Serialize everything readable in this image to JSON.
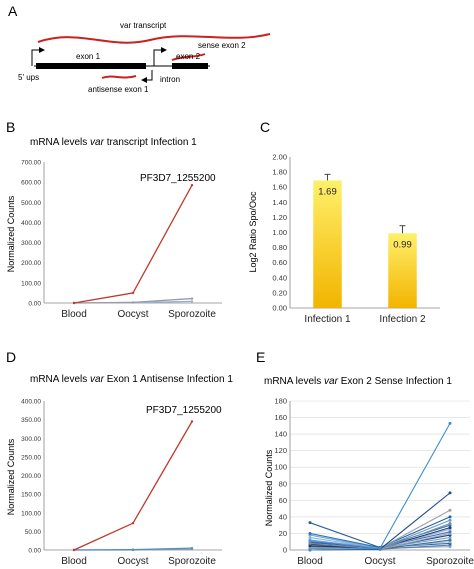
{
  "panel_a": {
    "letter": "A",
    "labels": {
      "var_transcript": "var transcript",
      "sense_exon2": "sense exon 2",
      "exon1": "exon 1",
      "exon2": "exon 2",
      "ups": "5' ups",
      "intron": "intron",
      "antisense_exon1": "antisense exon 1"
    },
    "colors": {
      "transcript": "#c8231e",
      "gene": "#000000"
    }
  },
  "chart_data": [
    {
      "panel": "B",
      "type": "line",
      "title_pre": "mRNA levels ",
      "title_em": "var",
      "title_post": " transcript Infection 1",
      "ylabel": "Normalized Counts",
      "categories": [
        "Blood",
        "Oocyst",
        "Sporozoite"
      ],
      "ylim": [
        0,
        700
      ],
      "yticks": [
        "0.00",
        "100.00",
        "200.00",
        "300.00",
        "400.00",
        "500.00",
        "600.00",
        "700.00"
      ],
      "annotation": "PF3D7_1255200",
      "series": [
        {
          "name": "PF3D7_1255200",
          "color": "#c0392b",
          "values": [
            0,
            50,
            585
          ]
        },
        {
          "color": "#9a9aa6",
          "values": [
            0,
            3,
            22
          ]
        },
        {
          "color": "#8fb4d8",
          "values": [
            0,
            2,
            8
          ]
        }
      ]
    },
    {
      "panel": "C",
      "type": "bar",
      "ylabel": "Log2 Ratio Spo/Ooc",
      "categories": [
        "Infection 1",
        "Infection 2"
      ],
      "values": [
        1.69,
        0.99
      ],
      "errors": [
        0.08,
        0.1
      ],
      "data_labels": [
        "1.69",
        "0.99"
      ],
      "ylim": [
        0,
        2
      ],
      "yticks": [
        "0.00",
        "0.20",
        "0.40",
        "0.60",
        "0.80",
        "1.00",
        "1.20",
        "1.40",
        "1.60",
        "1.80",
        "2.00"
      ],
      "colors": {
        "top": "#fff06a",
        "bottom": "#f2b400",
        "error": "#444444"
      }
    },
    {
      "panel": "D",
      "type": "line",
      "title_pre": "mRNA levels ",
      "title_em": "var",
      "title_post": " Exon 1 Antisense Infection 1",
      "ylabel": "Normalized Counts",
      "categories": [
        "Blood",
        "Oocyst",
        "Sporozoite"
      ],
      "ylim": [
        0,
        400
      ],
      "yticks": [
        "0.00",
        "50.00",
        "100.00",
        "150.00",
        "200.00",
        "250.00",
        "300.00",
        "350.00",
        "400.00"
      ],
      "annotation": "PF3D7_1255200",
      "series": [
        {
          "name": "PF3D7_1255200",
          "color": "#c0392b",
          "values": [
            0,
            72,
            345
          ]
        },
        {
          "color": "#4a8fc4",
          "values": [
            0,
            1,
            5
          ]
        },
        {
          "color": "#9a9aa6",
          "values": [
            0,
            0,
            2
          ]
        }
      ]
    },
    {
      "panel": "E",
      "type": "line",
      "title_pre": "mRNA levels ",
      "title_em": "var",
      "title_post": " Exon 2 Sense Infection 1",
      "ylabel": "Normalized Counts",
      "categories": [
        "Blood",
        "Oocyst",
        "Sporozoite"
      ],
      "ylim": [
        0,
        180
      ],
      "yticks": [
        "0",
        "20",
        "40",
        "60",
        "80",
        "100",
        "120",
        "140",
        "160",
        "180"
      ],
      "series": [
        {
          "color": "#3a8fd0",
          "values": [
            0,
            2,
            153
          ]
        },
        {
          "color": "#1f4e8c",
          "values": [
            0,
            1,
            69
          ]
        },
        {
          "color": "#9aa3ad",
          "values": [
            0,
            2,
            48
          ]
        },
        {
          "color": "#2c5f9e",
          "values": [
            33,
            3,
            40
          ]
        },
        {
          "color": "#5b9bd5",
          "values": [
            12,
            2,
            36
          ]
        },
        {
          "color": "#7f8c99",
          "values": [
            8,
            1,
            32
          ]
        },
        {
          "color": "#2e75b6",
          "values": [
            20,
            3,
            30
          ]
        },
        {
          "color": "#1a3a6b",
          "values": [
            5,
            2,
            27
          ]
        },
        {
          "color": "#8db3e2",
          "values": [
            15,
            2,
            25
          ]
        },
        {
          "color": "#4472c4",
          "values": [
            10,
            3,
            22
          ]
        },
        {
          "color": "#a5a5a5",
          "values": [
            3,
            1,
            20
          ]
        },
        {
          "color": "#264478",
          "values": [
            7,
            2,
            18
          ]
        },
        {
          "color": "#6fa8dc",
          "values": [
            18,
            2,
            15
          ]
        },
        {
          "color": "#3d6e99",
          "values": [
            4,
            1,
            12
          ]
        },
        {
          "color": "#b0bcc8",
          "values": [
            6,
            2,
            10
          ]
        },
        {
          "color": "#1e64a8",
          "values": [
            9,
            3,
            8
          ]
        },
        {
          "color": "#5a7fa6",
          "values": [
            2,
            1,
            6
          ]
        },
        {
          "color": "#8faadc",
          "values": [
            11,
            2,
            4
          ]
        }
      ]
    }
  ]
}
